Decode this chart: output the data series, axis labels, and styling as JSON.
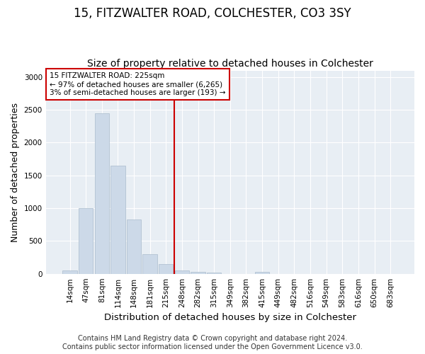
{
  "title": "15, FITZWALTER ROAD, COLCHESTER, CO3 3SY",
  "subtitle": "Size of property relative to detached houses in Colchester",
  "xlabel": "Distribution of detached houses by size in Colchester",
  "ylabel": "Number of detached properties",
  "bar_labels": [
    "14sqm",
    "47sqm",
    "81sqm",
    "114sqm",
    "148sqm",
    "181sqm",
    "215sqm",
    "248sqm",
    "282sqm",
    "315sqm",
    "349sqm",
    "382sqm",
    "415sqm",
    "449sqm",
    "482sqm",
    "516sqm",
    "549sqm",
    "583sqm",
    "616sqm",
    "650sqm",
    "683sqm"
  ],
  "bar_values": [
    55,
    1000,
    2450,
    1650,
    830,
    300,
    150,
    55,
    30,
    20,
    0,
    0,
    30,
    0,
    0,
    0,
    0,
    0,
    0,
    0,
    0
  ],
  "bar_color": "#ccd9e8",
  "bar_edgecolor": "#aabbcc",
  "vline_x": 6.5,
  "vline_color": "#cc0000",
  "annotation_text": "15 FITZWALTER ROAD: 225sqm\n← 97% of detached houses are smaller (6,265)\n3% of semi-detached houses are larger (193) →",
  "annotation_box_color": "#cc0000",
  "ylim": [
    0,
    3100
  ],
  "yticks": [
    0,
    500,
    1000,
    1500,
    2000,
    2500,
    3000
  ],
  "footer_line1": "Contains HM Land Registry data © Crown copyright and database right 2024.",
  "footer_line2": "Contains public sector information licensed under the Open Government Licence v3.0.",
  "background_color": "#e8eef4",
  "grid_color": "#ffffff",
  "fig_bg_color": "#ffffff",
  "title_fontsize": 12,
  "subtitle_fontsize": 10,
  "axis_label_fontsize": 9,
  "tick_fontsize": 7.5,
  "footer_fontsize": 7
}
